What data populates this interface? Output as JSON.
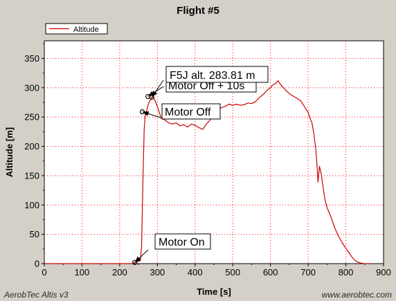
{
  "chart_data": {
    "type": "line",
    "title": "Flight #5",
    "xlabel": "Time [s]",
    "ylabel": "Altitude [m]",
    "xlim": [
      0,
      900
    ],
    "ylim": [
      0,
      380
    ],
    "x_ticks": [
      0,
      100,
      200,
      300,
      400,
      500,
      600,
      700,
      800,
      900
    ],
    "y_ticks": [
      0,
      50,
      100,
      150,
      200,
      250,
      300,
      350
    ],
    "grid": true,
    "legend_position": "top-left",
    "series": [
      {
        "name": "Altitude",
        "color": "#cc0000",
        "x": [
          0,
          20,
          40,
          60,
          80,
          100,
          120,
          140,
          160,
          180,
          200,
          220,
          235,
          240,
          245,
          250,
          255,
          258,
          262,
          265,
          268,
          270,
          272,
          275,
          280,
          285,
          290,
          295,
          300,
          305,
          310,
          320,
          330,
          340,
          350,
          360,
          370,
          380,
          390,
          400,
          410,
          420,
          430,
          440,
          450,
          460,
          470,
          480,
          490,
          500,
          510,
          520,
          530,
          540,
          550,
          560,
          570,
          580,
          590,
          600,
          605,
          610,
          615,
          620,
          625,
          630,
          640,
          650,
          660,
          670,
          680,
          690,
          700,
          705,
          710,
          715,
          720,
          722,
          724,
          726,
          728,
          730,
          735,
          740,
          745,
          750,
          755,
          760,
          770,
          780,
          790,
          800,
          810,
          820,
          830,
          840,
          850,
          860,
          870
        ],
        "y": [
          0,
          0,
          0,
          0,
          0,
          0,
          0,
          0,
          0,
          0,
          0,
          0,
          0,
          2,
          3,
          4,
          5,
          30,
          150,
          230,
          255,
          258,
          262,
          270,
          278,
          283,
          284,
          276,
          268,
          258,
          248,
          245,
          240,
          238,
          240,
          235,
          237,
          233,
          238,
          236,
          232,
          229,
          238,
          245,
          252,
          262,
          266,
          268,
          272,
          270,
          272,
          270,
          271,
          274,
          273,
          276,
          283,
          288,
          295,
          300,
          304,
          306,
          308,
          312,
          307,
          303,
          296,
          290,
          286,
          282,
          278,
          268,
          258,
          248,
          240,
          222,
          196,
          182,
          162,
          139,
          153,
          166,
          152,
          128,
          108,
          96,
          88,
          80,
          62,
          47,
          36,
          26,
          17,
          8,
          3,
          1,
          0,
          0,
          0
        ]
      }
    ],
    "annotations": [
      {
        "text": "Motor On",
        "x": 240,
        "y": 2
      },
      {
        "text": "Motor Off",
        "x": 260,
        "y": 259
      },
      {
        "text": "F5J alt. 283.81 m",
        "x": 285,
        "y": 283.81
      },
      {
        "text": "Motor Off + 10s",
        "x": 275,
        "y": 285
      }
    ]
  },
  "footer": {
    "left": "AerobTec Altis v3",
    "right": "www.aerobtec.com"
  },
  "colors": {
    "background": "#d4d0c8",
    "plot_background": "#ffffff",
    "grid": "#ff0000",
    "line": "#cc0000"
  }
}
